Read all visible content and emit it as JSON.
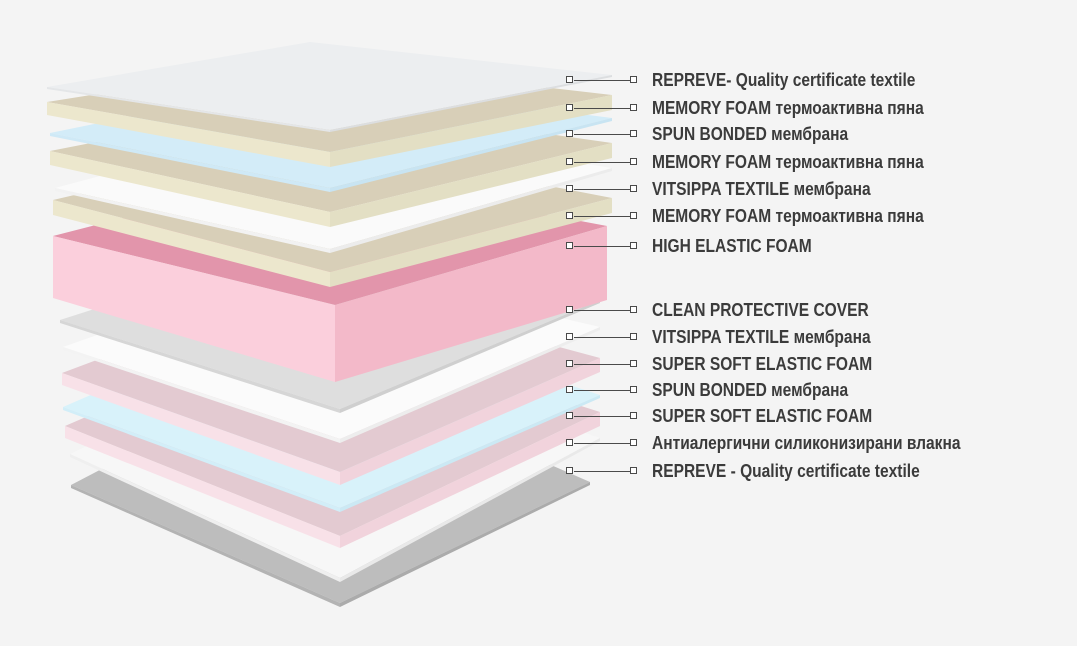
{
  "layers": [
    {
      "label": "REPREVE- Quality certificate textile",
      "colors": {
        "top": "#eceef0",
        "left": "#e4e6e8",
        "right": "#dcdee0"
      }
    },
    {
      "label": "MEMORY FOAM термоактивна пяна",
      "colors": {
        "top": "#d8cfb8",
        "left": "#ece7cd",
        "right": "#e3dfc4"
      }
    },
    {
      "label": "SPUN BONDED мембрана",
      "colors": {
        "top": "#d3ecf8",
        "left": "#cfe9f6",
        "right": "#c8e4f2"
      }
    },
    {
      "label": "MEMORY FOAM термоактивна пяна",
      "colors": {
        "top": "#d8cfb8",
        "left": "#ece7cd",
        "right": "#e3dfc4"
      }
    },
    {
      "label": "VITSIPPA TEXTILE мембрана",
      "colors": {
        "top": "#fafafa",
        "left": "#f2f2f2",
        "right": "#ececec"
      }
    },
    {
      "label": "MEMORY FOAM термоактивна пяна",
      "colors": {
        "top": "#d8cfb8",
        "left": "#ece7cd",
        "right": "#e3dfc4"
      }
    },
    {
      "label": "HIGH ELASTIC FOAM",
      "colors": {
        "top": "#e295ab",
        "left": "#fbcfdc",
        "right": "#f3b9c9"
      }
    },
    {
      "label": "CLEAN PROTECTIVE COVER",
      "colors": {
        "top": "#dedede",
        "left": "#d6d6d6",
        "right": "#cfcfcf"
      }
    },
    {
      "label": "VITSIPPA TEXTILE мембрана",
      "colors": {
        "top": "#fbfbfb",
        "left": "#f3f3f3",
        "right": "#ededed"
      }
    },
    {
      "label": "SUPER SOFT ELASTIC FOAM",
      "colors": {
        "top": "#e3cad1",
        "left": "#f8e1e8",
        "right": "#f1d3dc"
      }
    },
    {
      "label": "SPUN BONDED мембрана",
      "colors": {
        "top": "#d8f2fa",
        "left": "#d2eef8",
        "right": "#cbe9f4"
      }
    },
    {
      "label": "SUPER SOFT ELASTIC FOAM",
      "colors": {
        "top": "#e3cad1",
        "left": "#f8e1e8",
        "right": "#f1d3dc"
      }
    },
    {
      "label": "Антиалергични силиконизирани влакна",
      "colors": {
        "top": "#f7f7f7",
        "left": "#efefef",
        "right": "#e9e9e9"
      }
    },
    {
      "label": "REPREVE - Quality certificate textile",
      "colors": {
        "top": "#bdbdbd",
        "left": "#b3b3b3",
        "right": "#ababab"
      }
    }
  ]
}
